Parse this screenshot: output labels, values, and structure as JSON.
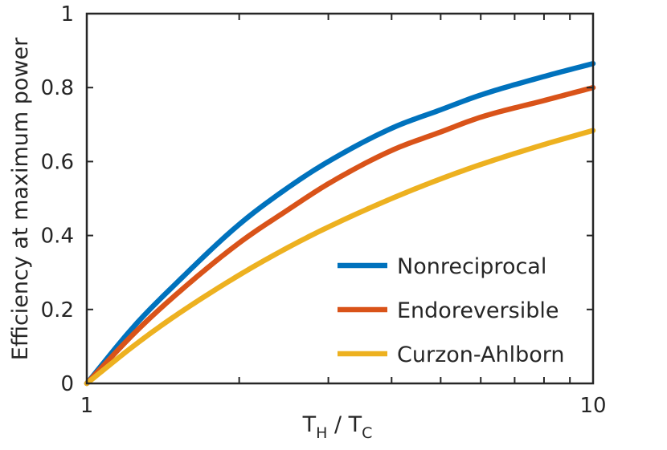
{
  "chart_data": {
    "type": "line",
    "xscale": "log",
    "xlim": [
      1,
      10
    ],
    "ylim": [
      0,
      1
    ],
    "xticks": [
      "1",
      "10"
    ],
    "yticks": [
      "0",
      "0.2",
      "0.4",
      "0.6",
      "0.8",
      "1"
    ],
    "ylabel": "Efficiency at maximum power",
    "xlabel": {
      "t1": "T",
      "s1": "H",
      "slash": " / ",
      "t2": "T",
      "s2": "C"
    },
    "legend": {
      "position": "bottom-right"
    },
    "grid": false,
    "x": [
      1,
      1.25,
      1.5,
      2,
      2.5,
      3,
      4,
      5,
      6,
      8,
      10
    ],
    "series": [
      {
        "name": "Nonreciprocal",
        "color": "#0072BD",
        "values": [
          0,
          0.16,
          0.27,
          0.43,
          0.53,
          0.6,
          0.69,
          0.74,
          0.78,
          0.83,
          0.865
        ]
      },
      {
        "name": "Endoreversible",
        "color": "#D95319",
        "values": [
          0,
          0.14,
          0.24,
          0.38,
          0.47,
          0.54,
          0.63,
          0.68,
          0.72,
          0.765,
          0.8
        ]
      },
      {
        "name": "Curzon-Ahlborn",
        "color": "#EDB120",
        "values": [
          0,
          0.106,
          0.184,
          0.293,
          0.368,
          0.423,
          0.5,
          0.553,
          0.592,
          0.646,
          0.684
        ]
      }
    ]
  }
}
